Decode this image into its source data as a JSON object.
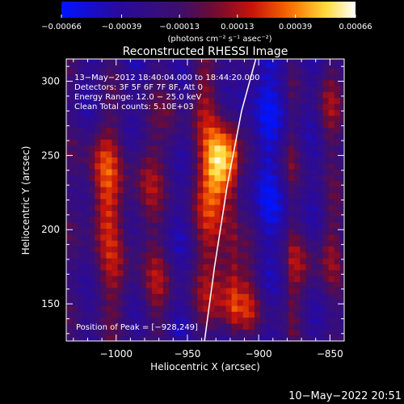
{
  "chart_data": {
    "type": "heatmap",
    "title": "Reconstructed RHESSI Image",
    "xlabel": "Heliocentric X (arcsec)",
    "ylabel": "Heliocentric Y (arcsec)",
    "xlim": [
      -1035,
      -840
    ],
    "ylim": [
      125,
      315
    ],
    "x_ticks": [
      -1000,
      -950,
      -900,
      -850
    ],
    "x_tick_labels": [
      "−1000",
      "−950",
      "−900",
      "−850"
    ],
    "y_ticks": [
      150,
      200,
      250,
      300
    ],
    "y_tick_labels": [
      "150",
      "200",
      "250",
      "300"
    ],
    "colorbar": {
      "range": [
        -0.00066,
        0.00066
      ],
      "ticks": [
        -0.00066,
        -0.00039,
        -0.00013,
        0.00013,
        0.00039,
        0.00066
      ],
      "tick_labels": [
        "−0.00066",
        "−0.00039",
        "−0.00013",
        "0.00013",
        "0.00039",
        "0.00066"
      ],
      "units_label": "(photons cm⁻² s⁻¹ asec⁻²)"
    },
    "annotations": [
      "13−May−2012 18:40:04.000 to 18:44:20.000",
      "Detectors: 3F 5F 6F 7F 8F, Att 0",
      "Energy Range: 12.0 − 25.0 keV",
      "Clean     Total counts: 5.10E+03"
    ],
    "peak_label": "Position of Peak = [−928,249]",
    "peak": {
      "x": -928,
      "y": 249
    },
    "limb_curve": {
      "x": [
        -938,
        -931,
        -922,
        -912,
        -902
      ],
      "y": [
        125,
        175,
        230,
        280,
        315
      ]
    },
    "grid": false
  },
  "footer": {
    "timestamp": "10−May−2022 20:51"
  }
}
